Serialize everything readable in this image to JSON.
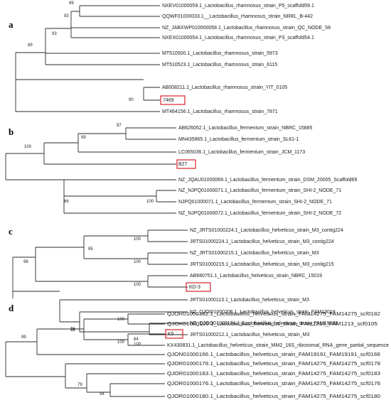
{
  "panels": [
    {
      "letter": "a",
      "leaves": [
        "NXEV01000059.1_Lactobacillus_rhamnosus_strain_P5_scaffold59.1",
        "QQWF01000033.1__Lactobacillus_rhamnosus_strain_NRRL_B-442",
        "NZ_JABXWP010000058.1_Lactobacillus_rhamnosus_strain_QC_NODE_58",
        "NXEX01000054.1_Lactobacillus_rhamnosus_strain_P3_scaffold54.1",
        "MT510500.1_Lactobacillus_rhamnosus_strain_5973",
        "MT510523.1_Lactobacillus_rhamnosus_strain_6115",
        "AB008211.1_Lactobacillus_rhamnosus_strain_YIT_0105",
        "7469",
        "MT464156.1_Lactobacillus_rhamnosus_strain_7871"
      ],
      "highlight": "7469",
      "bootstraps": [
        "99",
        "93",
        "93",
        "89",
        "90"
      ]
    },
    {
      "letter": "b",
      "leaves": [
        "AB626052.1_Lactobacillus_fermentum_strain_NBRC_15885",
        "MN435865.1_Lactobacillus_fermentum_strain_SL61-1",
        "LC065036.1_Lactobacillus_fermentum_strain_JCM_1173",
        "B27",
        "NZ_JQAU01000069.1_Lactobacillus_fermentum_strain_DSM_20055_Scaffold69",
        "NZ_NJPQ01000071.1_Lactobacillus_fermentum_strain_SHI-2_NODE_71",
        "NJPQ01000071.1_Lactobacillus_fermentum_strain_SHI-2_NODE_71",
        "NZ_NJPQ01000072.1_Lactobacillus_fermentum_strain_SHI-2_NODE_72"
      ],
      "highlight": "B27",
      "bootstraps": [
        "97",
        "99",
        "100",
        "66",
        "100"
      ]
    },
    {
      "letter": "c",
      "leaves": [
        "NZ_JRTS01000224.1_Lactobacillus_helveticus_strain_M3_contig224",
        "JRTS01000224.1_Lactobacillus_helveticus_strain_M3_contig224",
        "NZ_JRTS01000215.1_Lactobacillus_helveticus_strain_M3",
        "JRTS01000215.1_Lactobacillus_helveticus_strain_M3_contig215",
        "AB680751.1_Lactobacillus_helveticus_strain_NBRC_15019",
        "KD-3",
        "JRTS01000113.1_Lactobacillus_helveticus_strain_M3",
        "NZ_QJOI01000206.1_Lactobacillus_helveticus_strain_FAM13019",
        "NZ_QJOO01000174.1_Lactobacillus_helveticus_strain_FAM19188",
        "JRTS01000212.1_Lactobacillus_helveticus_strain_M3"
      ],
      "highlight": "KD-3",
      "bootstraps": [
        "100",
        "95",
        "100",
        "100",
        "98",
        "100",
        "76",
        "84"
      ]
    },
    {
      "letter": "d",
      "leaves": [
        "QJOR01000182.1_Lactobacillus_helveticus_strain_FAM14275_FAM14275_scf0182",
        "QJOK01000105.1_Lactobacillus_helveticus_strain_FAM1213_FAM1213_scf0105",
        "K5",
        "KX430831.1_Lactobacillus_helveticus_strain_MM2_16S_ribosomal_RNA_gene_partial_sequence",
        "QJON01000166.1_Lactobacillus_helveticus_strain_FAM19191_FAM19191_scf0166",
        "QJOR01000178.1_Lactobacillus_helveticus_strain_FAM14275_FAM14275_scf0178",
        "QJOR01000183.1_Lactobacillus_helveticus_strain_FAM14275_FAM14275_scf0183",
        "QJOR01000176.1_Lactobacillus_helveticus_strain_FAM14275_FAM14275_scf0176",
        "QJOR01000180.1_Lactobacillus_helveticus_strain_FAM14275_FAM14275_scf0180"
      ],
      "highlight": "K5",
      "bootstraps": [
        "100",
        "92",
        "100",
        "99",
        "79",
        "94"
      ]
    }
  ],
  "colors": {
    "highlight_box": "#d6222a",
    "branch": "#2b2b2b"
  }
}
